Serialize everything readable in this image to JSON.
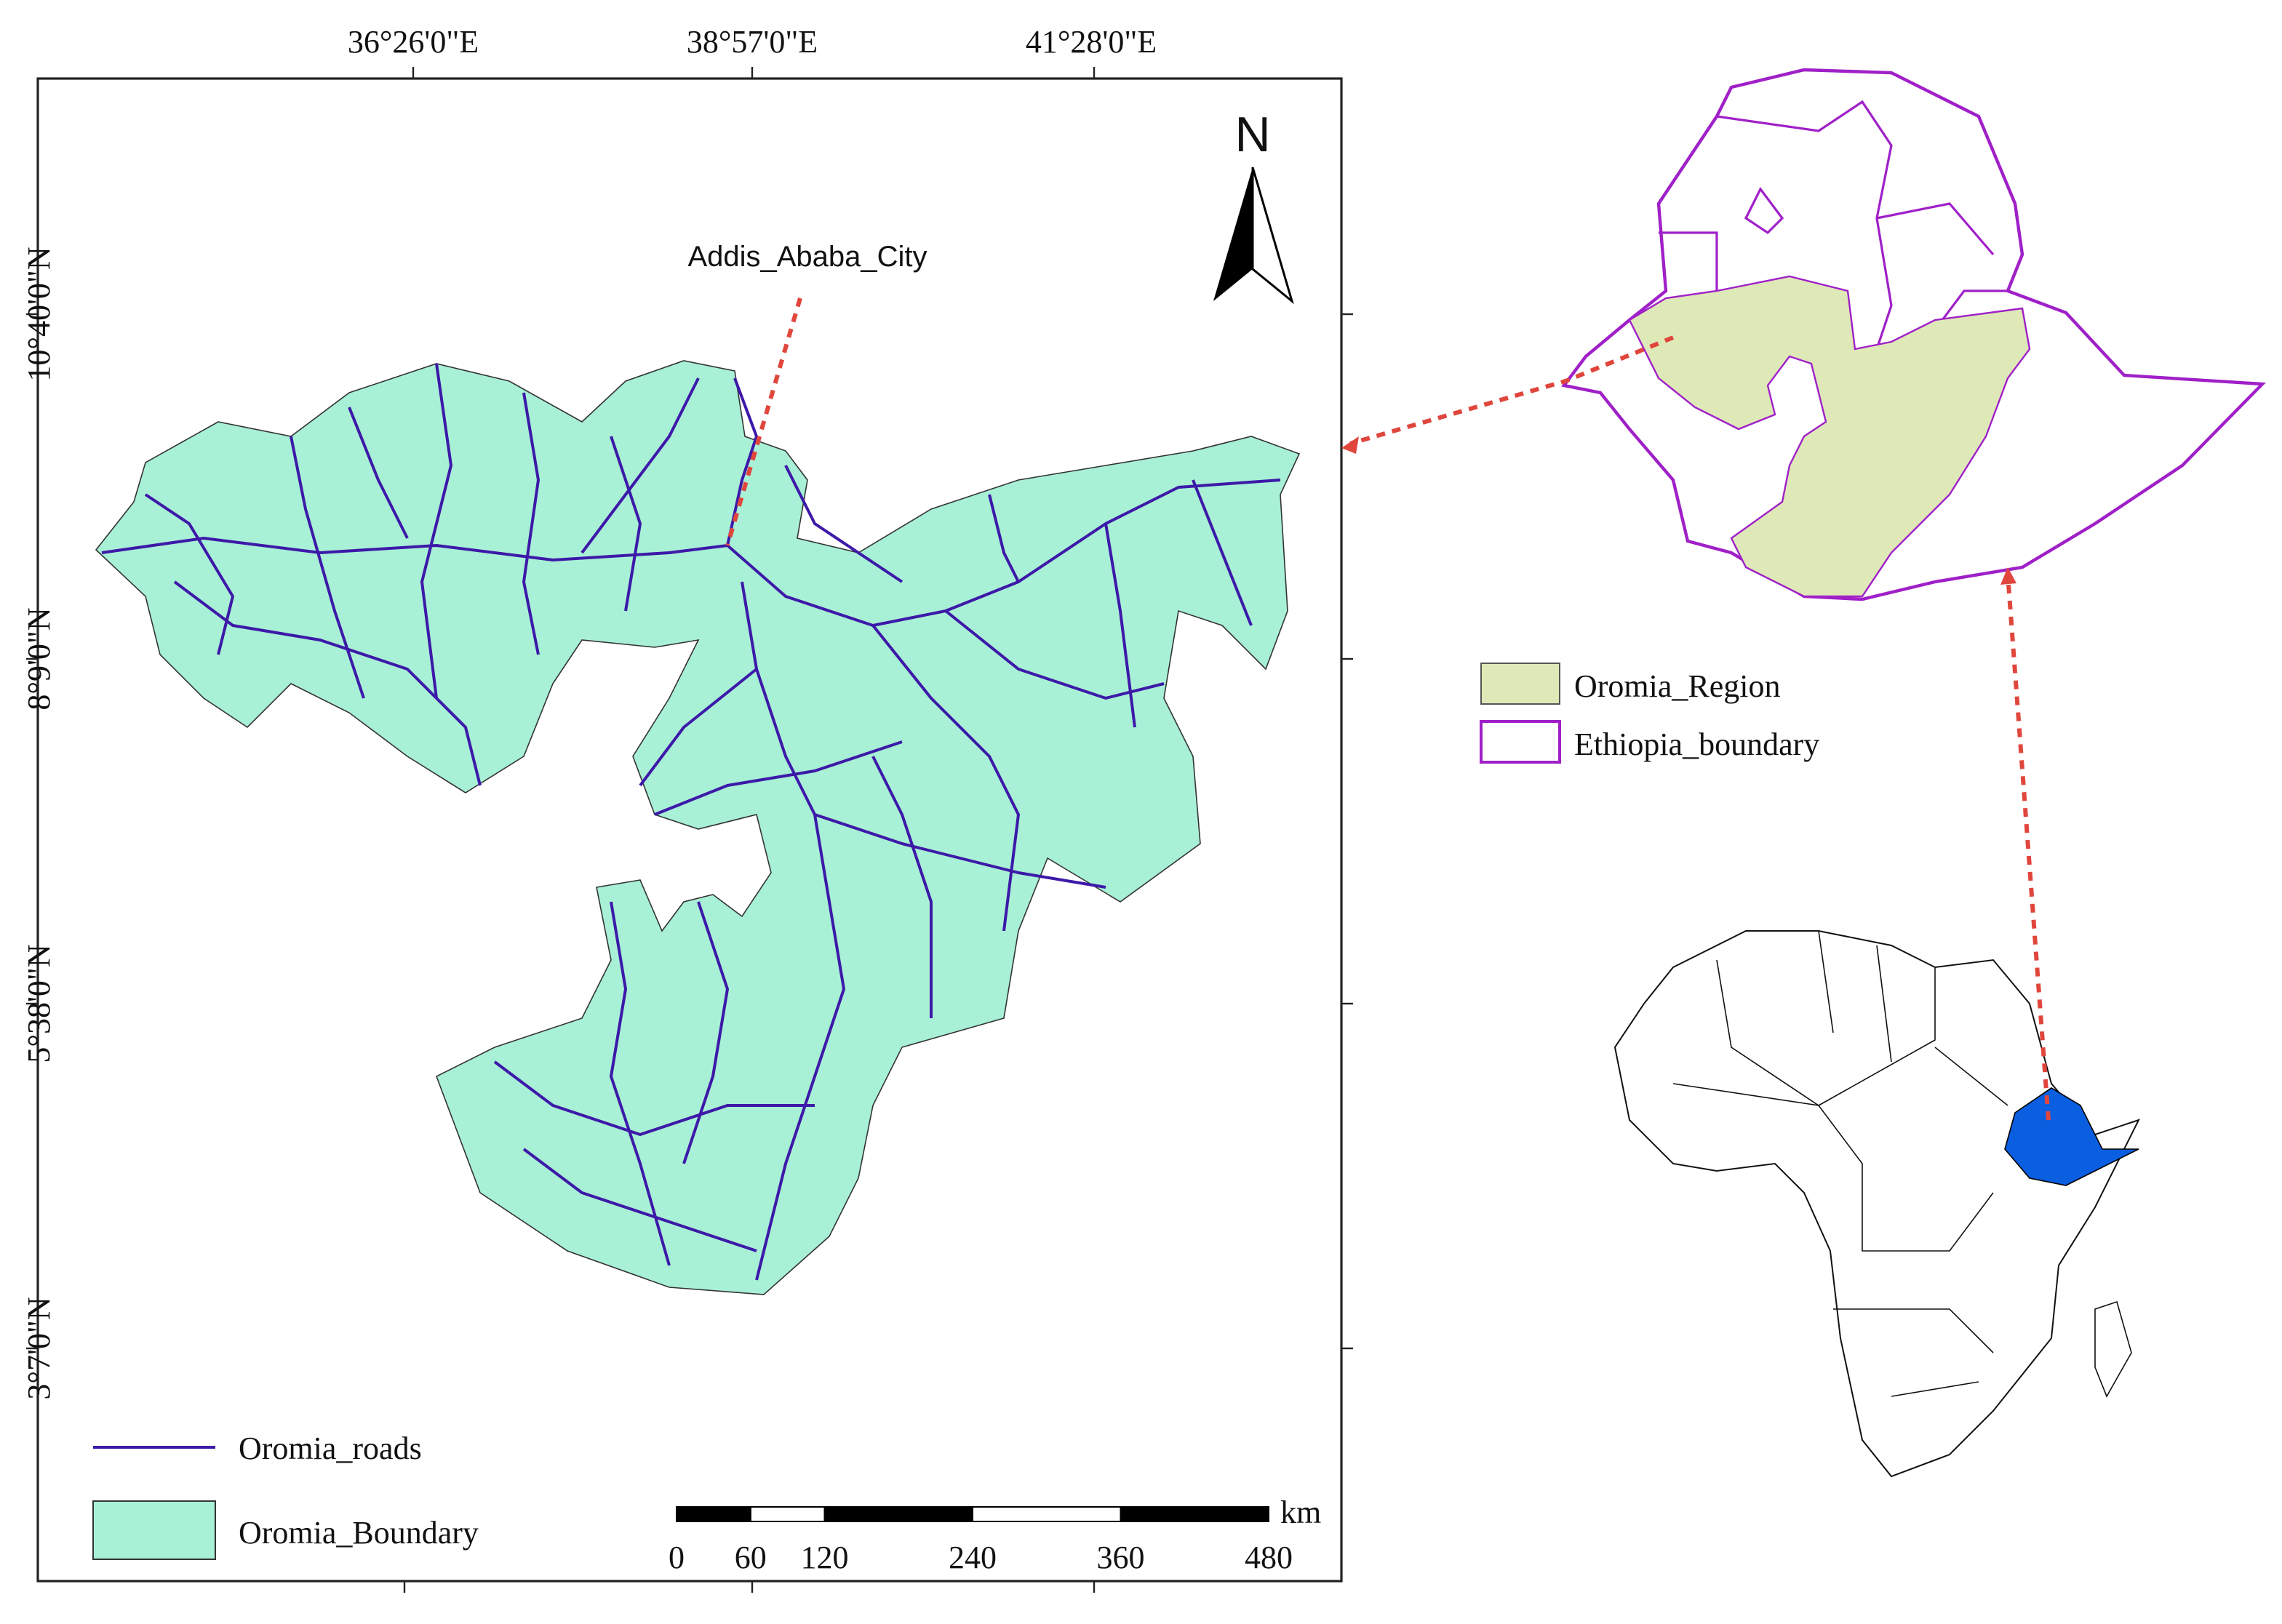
{
  "map": {
    "lon_labels": [
      "36°26'0\"E",
      "38°57'0\"E",
      "41°28'0\"E"
    ],
    "lat_labels": [
      "10°40'0\"N",
      "8°9'0\"N",
      "5°38'0\"N",
      "3°7'0\"N"
    ],
    "north_arrow": "N",
    "city_label": "Addis_Ababa_City"
  },
  "legend": {
    "roads": "Oromia_roads",
    "boundary": "Oromia_Boundary"
  },
  "scale_bar": {
    "unit": "km",
    "ticks": [
      0,
      60,
      120,
      240,
      360,
      480
    ]
  },
  "inset_legend": {
    "region": "Oromia_Region",
    "country": "Ethiopia_boundary"
  }
}
